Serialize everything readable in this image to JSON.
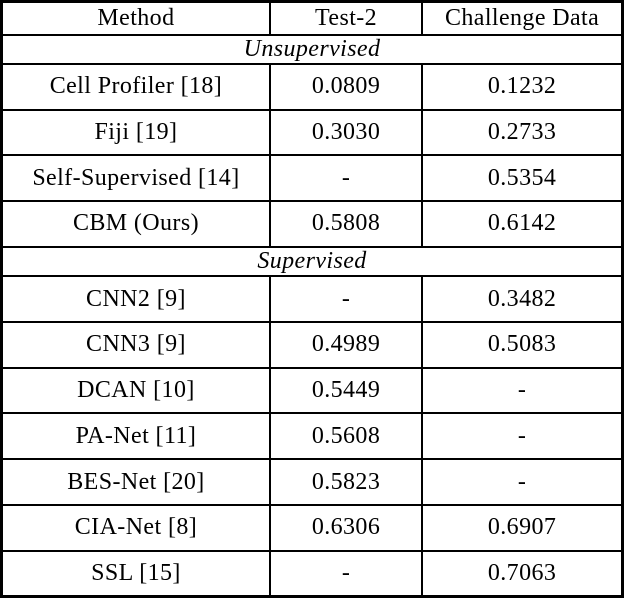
{
  "columns": {
    "method": "Method",
    "test2": "Test-2",
    "challenge_data": "Challenge Data"
  },
  "sections": {
    "unsupervised": "Unsupervised",
    "supervised": "Supervised"
  },
  "rows": [
    {
      "method": "Cell Profiler [18]",
      "test2": "0.0809",
      "challenge_data": "0.1232"
    },
    {
      "method": "Fiji [19]",
      "test2": "0.3030",
      "challenge_data": "0.2733"
    },
    {
      "method": "Self-Supervised [14]",
      "test2": "-",
      "challenge_data": "0.5354"
    },
    {
      "method": "CBM (Ours)",
      "test2": "0.5808",
      "challenge_data": "0.6142"
    },
    {
      "method": "CNN2 [9]",
      "test2": "-",
      "challenge_data": "0.3482"
    },
    {
      "method": "CNN3 [9]",
      "test2": "0.4989",
      "challenge_data": "0.5083"
    },
    {
      "method": "DCAN [10]",
      "test2": "0.5449",
      "challenge_data": "-"
    },
    {
      "method": "PA-Net [11]",
      "test2": "0.5608",
      "challenge_data": "-"
    },
    {
      "method": "BES-Net [20]",
      "test2": "0.5823",
      "challenge_data": "-"
    },
    {
      "method": "CIA-Net [8]",
      "test2": "0.6306",
      "challenge_data": "0.6907"
    },
    {
      "method": "SSL [15]",
      "test2": "-",
      "challenge_data": "0.7063"
    }
  ],
  "chart_data": {
    "type": "table",
    "title": "",
    "columns": [
      "Method",
      "Test-2",
      "Challenge Data"
    ],
    "section_groups": [
      {
        "section": "Unsupervised",
        "rows": [
          [
            "Cell Profiler [18]",
            "0.0809",
            "0.1232"
          ],
          [
            "Fiji [19]",
            "0.3030",
            "0.2733"
          ],
          [
            "Self-Supervised [14]",
            "-",
            "0.5354"
          ],
          [
            "CBM (Ours)",
            "0.5808",
            "0.6142"
          ]
        ]
      },
      {
        "section": "Supervised",
        "rows": [
          [
            "CNN2 [9]",
            "-",
            "0.3482"
          ],
          [
            "CNN3 [9]",
            "0.4989",
            "0.5083"
          ],
          [
            "DCAN [10]",
            "0.5449",
            "-"
          ],
          [
            "PA-Net [11]",
            "0.5608",
            "-"
          ],
          [
            "BES-Net [20]",
            "0.5823",
            "-"
          ],
          [
            "CIA-Net [8]",
            "0.6306",
            "0.6907"
          ],
          [
            "SSL [15]",
            "-",
            "0.7063"
          ]
        ]
      }
    ],
    "bold_values": [
      "0.5808",
      "0.6142",
      "0.6306",
      "0.7063"
    ]
  }
}
